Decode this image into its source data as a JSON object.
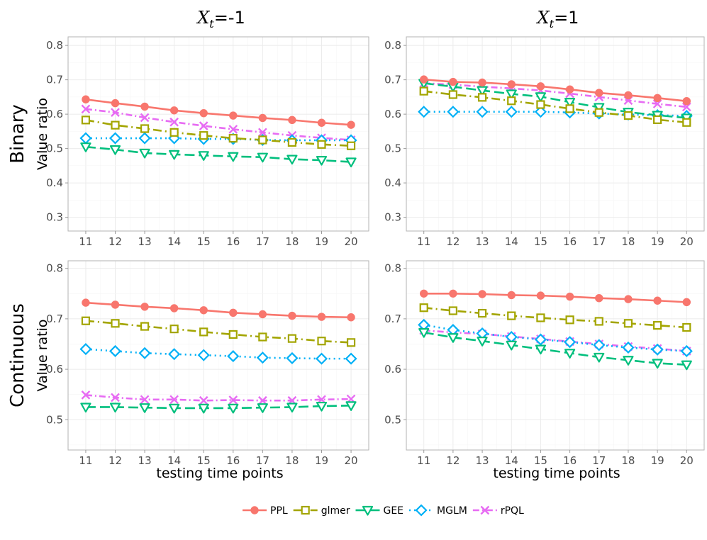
{
  "chart_data": {
    "type": "line",
    "column_titles": [
      {
        "var": "X",
        "sub": "t",
        "rest": "=-1"
      },
      {
        "var": "X",
        "sub": "t",
        "rest": "=1"
      }
    ],
    "row_titles": [
      "Binary",
      "Continuous"
    ],
    "xlabel": "testing time points",
    "ylabel": "Value ratio",
    "x": [
      11,
      12,
      13,
      14,
      15,
      16,
      17,
      18,
      19,
      20
    ],
    "series_styles": [
      {
        "name": "PPL",
        "color": "#F8766D",
        "dash": "",
        "marker": "circle"
      },
      {
        "name": "glmer",
        "color": "#A3A500",
        "dash": "12 5 2 5",
        "marker": "square"
      },
      {
        "name": "GEE",
        "color": "#00BF7D",
        "dash": "14 6",
        "marker": "triangle-down"
      },
      {
        "name": "MGLM",
        "color": "#00B0F6",
        "dash": "2 5",
        "marker": "diamond"
      },
      {
        "name": "rPQL",
        "color": "#E76BF3",
        "dash": "9 4 2 4",
        "marker": "cross"
      }
    ],
    "panels": [
      {
        "row": "Binary",
        "column": "X_t=-1",
        "ylim": [
          0.26,
          0.825
        ],
        "yticks": [
          0.3,
          0.4,
          0.5,
          0.6,
          0.7,
          0.8
        ],
        "series": [
          {
            "name": "PPL",
            "values": [
              0.643,
              0.632,
              0.622,
              0.611,
              0.603,
              0.596,
              0.589,
              0.583,
              0.575,
              0.569
            ]
          },
          {
            "name": "glmer",
            "values": [
              0.583,
              0.568,
              0.558,
              0.547,
              0.538,
              0.53,
              0.525,
              0.518,
              0.512,
              0.508
            ]
          },
          {
            "name": "GEE",
            "values": [
              0.505,
              0.497,
              0.487,
              0.483,
              0.48,
              0.477,
              0.475,
              0.469,
              0.466,
              0.461
            ]
          },
          {
            "name": "MGLM",
            "values": [
              0.53,
              0.53,
              0.53,
              0.53,
              0.528,
              0.528,
              0.525,
              0.524,
              0.524,
              0.524
            ]
          },
          {
            "name": "rPQL",
            "values": [
              0.615,
              0.605,
              0.59,
              0.577,
              0.566,
              0.556,
              0.547,
              0.538,
              0.531,
              0.525
            ]
          }
        ]
      },
      {
        "row": "Binary",
        "column": "X_t=1",
        "ylim": [
          0.26,
          0.825
        ],
        "yticks": [
          0.3,
          0.4,
          0.5,
          0.6,
          0.7,
          0.8
        ],
        "series": [
          {
            "name": "PPL",
            "values": [
              0.701,
              0.694,
              0.692,
              0.687,
              0.681,
              0.672,
              0.662,
              0.655,
              0.647,
              0.638
            ]
          },
          {
            "name": "glmer",
            "values": [
              0.667,
              0.657,
              0.649,
              0.639,
              0.628,
              0.616,
              0.605,
              0.596,
              0.584,
              0.576
            ]
          },
          {
            "name": "GEE",
            "values": [
              0.69,
              0.68,
              0.669,
              0.659,
              0.651,
              0.635,
              0.62,
              0.606,
              0.597,
              0.589
            ]
          },
          {
            "name": "MGLM",
            "values": [
              0.607,
              0.607,
              0.607,
              0.607,
              0.607,
              0.605,
              0.602,
              0.599,
              0.597,
              0.595
            ]
          },
          {
            "name": "rPQL",
            "values": [
              0.69,
              0.686,
              0.68,
              0.675,
              0.669,
              0.66,
              0.65,
              0.64,
              0.63,
              0.621
            ]
          }
        ]
      },
      {
        "row": "Continuous",
        "column": "X_t=-1",
        "ylim": [
          0.44,
          0.815
        ],
        "yticks": [
          0.5,
          0.6,
          0.7,
          0.8
        ],
        "series": [
          {
            "name": "PPL",
            "values": [
              0.732,
              0.728,
              0.724,
              0.721,
              0.717,
              0.712,
              0.709,
              0.706,
              0.704,
              0.703
            ]
          },
          {
            "name": "glmer",
            "values": [
              0.696,
              0.691,
              0.685,
              0.68,
              0.674,
              0.669,
              0.664,
              0.661,
              0.656,
              0.653
            ]
          },
          {
            "name": "GEE",
            "values": [
              0.525,
              0.525,
              0.524,
              0.523,
              0.523,
              0.523,
              0.524,
              0.525,
              0.527,
              0.528
            ]
          },
          {
            "name": "MGLM",
            "values": [
              0.64,
              0.636,
              0.632,
              0.63,
              0.628,
              0.626,
              0.623,
              0.622,
              0.621,
              0.621
            ]
          },
          {
            "name": "rPQL",
            "values": [
              0.549,
              0.544,
              0.54,
              0.54,
              0.538,
              0.539,
              0.538,
              0.538,
              0.54,
              0.541
            ]
          }
        ]
      },
      {
        "row": "Continuous",
        "column": "X_t=1",
        "ylim": [
          0.44,
          0.815
        ],
        "yticks": [
          0.5,
          0.6,
          0.7,
          0.8
        ],
        "series": [
          {
            "name": "PPL",
            "values": [
              0.75,
              0.75,
              0.749,
              0.747,
              0.746,
              0.744,
              0.741,
              0.739,
              0.736,
              0.733
            ]
          },
          {
            "name": "glmer",
            "values": [
              0.722,
              0.716,
              0.711,
              0.706,
              0.702,
              0.698,
              0.695,
              0.691,
              0.687,
              0.683
            ]
          },
          {
            "name": "GEE",
            "values": [
              0.673,
              0.663,
              0.656,
              0.648,
              0.64,
              0.632,
              0.624,
              0.618,
              0.612,
              0.609
            ]
          },
          {
            "name": "MGLM",
            "values": [
              0.688,
              0.678,
              0.671,
              0.664,
              0.659,
              0.654,
              0.648,
              0.643,
              0.639,
              0.636
            ]
          },
          {
            "name": "rPQL",
            "values": [
              0.677,
              0.673,
              0.67,
              0.665,
              0.66,
              0.655,
              0.65,
              0.645,
              0.641,
              0.636
            ]
          }
        ]
      }
    ],
    "legend_position": "bottom"
  }
}
